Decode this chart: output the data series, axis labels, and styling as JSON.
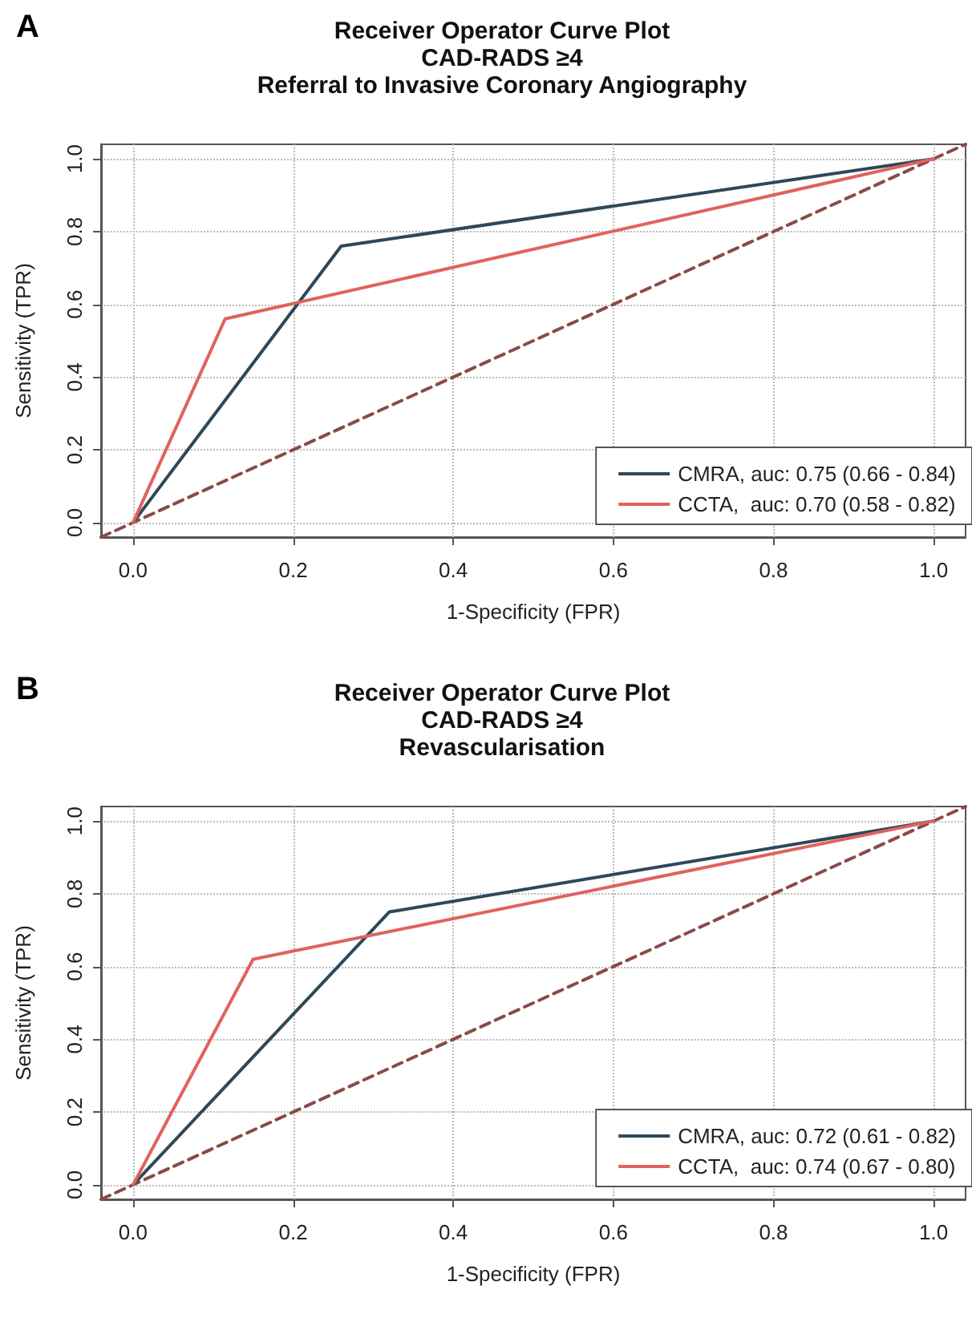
{
  "chart_data": [
    {
      "type": "line",
      "title": "Receiver Operator Curve Plot\nCAD-RADS ≥4\nReferral to Invasive Coronary Angiography",
      "xlabel": "1-Specificity (FPR)",
      "ylabel": "Sensitivity (TPR)",
      "annotations": [
        "A"
      ],
      "xlim": [
        -0.04,
        1.04
      ],
      "ylim": [
        -0.04,
        1.04
      ],
      "xticks": [
        {
          "value": 0,
          "label": "0.0"
        },
        {
          "value": 0.2,
          "label": "0.2"
        },
        {
          "value": 0.4,
          "label": "0.4"
        },
        {
          "value": 0.6,
          "label": "0.6"
        },
        {
          "value": 0.8,
          "label": "0.8"
        },
        {
          "value": 1,
          "label": "1.0"
        }
      ],
      "yticks": [
        {
          "value": 0,
          "label": "0.0"
        },
        {
          "value": 0.2,
          "label": "0.2"
        },
        {
          "value": 0.4,
          "label": "0.4"
        },
        {
          "value": 0.6,
          "label": "0.6"
        },
        {
          "value": 0.8,
          "label": "0.8"
        },
        {
          "value": 1,
          "label": "1.0"
        }
      ],
      "grid": true,
      "legend": "bottom right",
      "marker": "none",
      "series": [
        {
          "name": "CMRA, auc: 0.75 (0.66 - 0.84)",
          "color": "#2f4858",
          "x": [
            0,
            0.26,
            1
          ],
          "values": [
            0,
            0.76,
            1
          ]
        },
        {
          "name": "CCTA,  auc: 0.70 (0.58 - 0.82)",
          "color": "#e0625e",
          "x": [
            0,
            0.115,
            1
          ],
          "values": [
            0,
            0.56,
            1
          ]
        },
        {
          "color": "#8a4a48",
          "x": [
            -0.04,
            1.04
          ],
          "values": [
            -0.04,
            1.04
          ],
          "line_style": "dashed"
        }
      ]
    },
    {
      "type": "line",
      "title": "Receiver Operator Curve Plot\nCAD-RADS ≥4\nRevascularisation",
      "xlabel": "1-Specificity (FPR)",
      "ylabel": "Sensitivity (TPR)",
      "annotations": [
        "B"
      ],
      "xlim": [
        -0.04,
        1.04
      ],
      "ylim": [
        -0.04,
        1.04
      ],
      "xticks": [
        {
          "value": 0,
          "label": "0.0"
        },
        {
          "value": 0.2,
          "label": "0.2"
        },
        {
          "value": 0.4,
          "label": "0.4"
        },
        {
          "value": 0.6,
          "label": "0.6"
        },
        {
          "value": 0.8,
          "label": "0.8"
        },
        {
          "value": 1,
          "label": "1.0"
        }
      ],
      "yticks": [
        {
          "value": 0,
          "label": "0.0"
        },
        {
          "value": 0.2,
          "label": "0.2"
        },
        {
          "value": 0.4,
          "label": "0.4"
        },
        {
          "value": 0.6,
          "label": "0.6"
        },
        {
          "value": 0.8,
          "label": "0.8"
        },
        {
          "value": 1,
          "label": "1.0"
        }
      ],
      "grid": true,
      "legend": "bottom right",
      "marker": "none",
      "series": [
        {
          "name": "CMRA, auc: 0.72 (0.61 - 0.82)",
          "color": "#2f4858",
          "x": [
            0,
            0.32,
            1
          ],
          "values": [
            0,
            0.75,
            1
          ]
        },
        {
          "name": "CCTA,  auc: 0.74 (0.67 - 0.80)",
          "color": "#e0625e",
          "x": [
            0,
            0.15,
            1
          ],
          "values": [
            0,
            0.62,
            1
          ]
        },
        {
          "color": "#8a4a48",
          "x": [
            -0.04,
            1.04
          ],
          "values": [
            -0.04,
            1.04
          ],
          "line_style": "dashed"
        }
      ]
    }
  ]
}
